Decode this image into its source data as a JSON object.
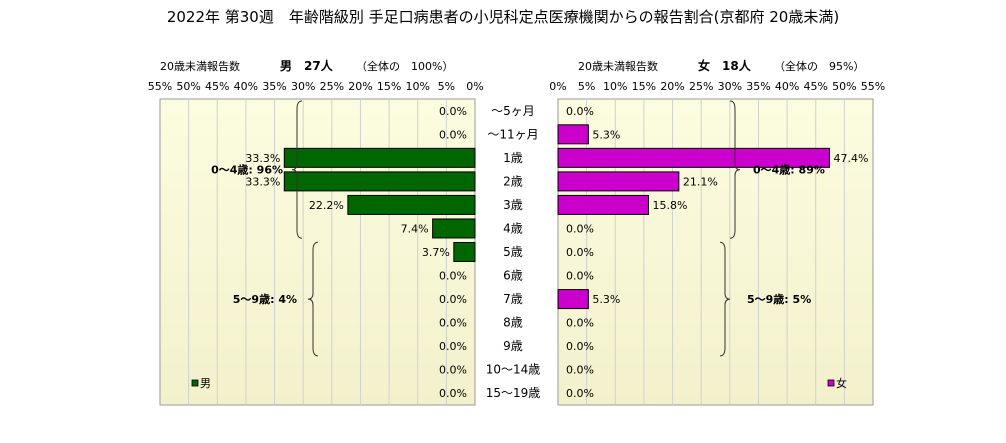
{
  "title": "2022年 第30週　年齢階級別 手足口病患者の小児科定点医療機関からの報告割合(京都府 20歳未満)",
  "chart_data": {
    "type": "bar",
    "categories": [
      "〜5ヶ月",
      "〜11ヶ月",
      "1歳",
      "2歳",
      "3歳",
      "4歳",
      "5歳",
      "6歳",
      "7歳",
      "8歳",
      "9歳",
      "10〜14歳",
      "15〜19歳"
    ],
    "xlim": [
      0,
      55
    ],
    "xticks": [
      0,
      5,
      10,
      15,
      20,
      25,
      30,
      35,
      40,
      45,
      50,
      55
    ],
    "tick_suffix": "%",
    "value_suffix": "%",
    "panels": [
      {
        "side": "left",
        "header_label": "20歳未満報告数",
        "header_count": "男　27人",
        "header_share": "（全体の　100%）",
        "legend": "男",
        "color": "#006600",
        "values": [
          0.0,
          0.0,
          33.3,
          33.3,
          22.2,
          7.4,
          3.7,
          0.0,
          0.0,
          0.0,
          0.0,
          0.0,
          0.0
        ],
        "groups": [
          {
            "label": "0〜4歳: 96%",
            "from": 0,
            "to": 5
          },
          {
            "label": "5〜9歳: 4%",
            "from": 6,
            "to": 10
          }
        ]
      },
      {
        "side": "right",
        "header_label": "20歳未満報告数",
        "header_count": "女　18人",
        "header_share": "（全体の　95%）",
        "legend": "女",
        "color": "#cc00cc",
        "values": [
          0.0,
          5.3,
          47.4,
          21.1,
          15.8,
          0.0,
          0.0,
          0.0,
          5.3,
          0.0,
          0.0,
          0.0,
          0.0
        ],
        "groups": [
          {
            "label": "0〜4歳: 89%",
            "from": 0,
            "to": 5
          },
          {
            "label": "5〜9歳: 5%",
            "from": 6,
            "to": 10
          }
        ]
      }
    ]
  }
}
